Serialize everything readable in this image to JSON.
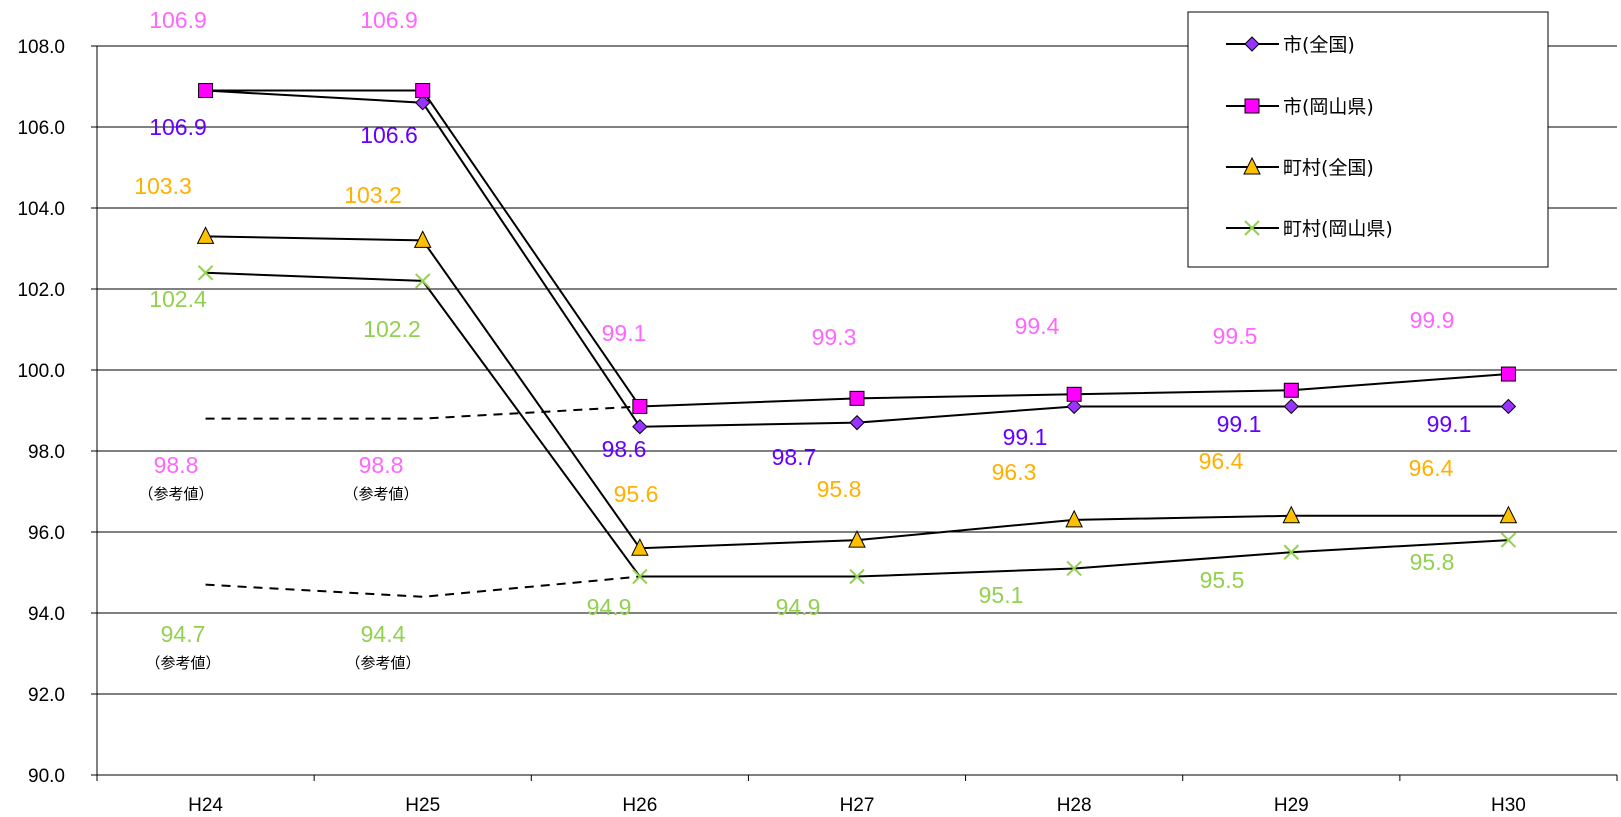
{
  "chart_data": {
    "type": "line",
    "categories": [
      "H24",
      "H25",
      "H26",
      "H27",
      "H28",
      "H29",
      "H30"
    ],
    "ylim": [
      90,
      108
    ],
    "yticks": [
      "90.0",
      "92.0",
      "94.0",
      "96.0",
      "98.0",
      "100.0",
      "102.0",
      "104.0",
      "106.0",
      "108.0"
    ],
    "grid": true,
    "legend_position": "top-right",
    "series": [
      {
        "name": "市(全国)",
        "marker": "diamond",
        "color": "#9933ff",
        "label_color": "#6600ff",
        "values": [
          106.9,
          106.6,
          98.6,
          98.7,
          99.1,
          99.1,
          99.1
        ],
        "labels": [
          "106.9",
          "106.6",
          "98.6",
          "98.7",
          "99.1",
          "99.1",
          "99.1"
        ]
      },
      {
        "name": "市(岡山県)",
        "marker": "square",
        "color": "#ff00ff",
        "label_color": "#ff66ff",
        "values": [
          106.9,
          106.9,
          99.1,
          99.3,
          99.4,
          99.5,
          99.9
        ],
        "labels": [
          "106.9",
          "106.9",
          "99.1",
          "99.3",
          "99.4",
          "99.5",
          "99.9"
        ]
      },
      {
        "name": "町村(全国)",
        "marker": "triangle",
        "color": "#ffc000",
        "label_color": "#ffb000",
        "values": [
          103.3,
          103.2,
          95.6,
          95.8,
          96.3,
          96.4,
          96.4
        ],
        "labels": [
          "103.3",
          "103.2",
          "95.6",
          "95.8",
          "96.3",
          "96.4",
          "96.4"
        ]
      },
      {
        "name": "町村(岡山県)",
        "marker": "x",
        "color": "#92d050",
        "label_color": "#92d050",
        "values": [
          102.4,
          102.2,
          94.9,
          94.9,
          95.1,
          95.5,
          95.8
        ],
        "labels": [
          "102.4",
          "102.2",
          "94.9",
          "94.9",
          "95.1",
          "95.5",
          "95.8"
        ]
      }
    ],
    "reference_series": [
      {
        "values": [
          98.8,
          98.8
        ],
        "labels": [
          "98.8",
          "98.8"
        ],
        "connects_to_series": 1,
        "label_color": "#ff66ff"
      },
      {
        "values": [
          94.7,
          94.4
        ],
        "labels": [
          "94.7",
          "94.4"
        ],
        "connects_to_series": 3,
        "label_color": "#92d050"
      }
    ],
    "reference_note": "（参考値）"
  }
}
